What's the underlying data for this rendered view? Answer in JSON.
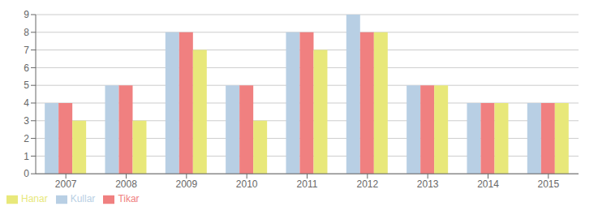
{
  "chart_data": {
    "type": "bar",
    "categories": [
      "2007",
      "2008",
      "2009",
      "2010",
      "2011",
      "2012",
      "2013",
      "2014",
      "2015"
    ],
    "series": [
      {
        "name": "Kullar",
        "color": "#b8cfe4",
        "values": [
          4,
          5,
          8,
          5,
          8,
          9,
          5,
          4,
          4
        ]
      },
      {
        "name": "Tikar",
        "color": "#f08080",
        "values": [
          4,
          5,
          8,
          5,
          8,
          8,
          5,
          4,
          4
        ]
      },
      {
        "name": "Hanar",
        "color": "#e8e87a",
        "values": [
          3,
          3,
          7,
          3,
          7,
          8,
          5,
          4,
          4
        ]
      }
    ],
    "ylim": [
      0,
      9
    ],
    "yticks": [
      0,
      1,
      2,
      3,
      4,
      5,
      6,
      7,
      8,
      9
    ],
    "grid": true,
    "legend": "bottom"
  }
}
